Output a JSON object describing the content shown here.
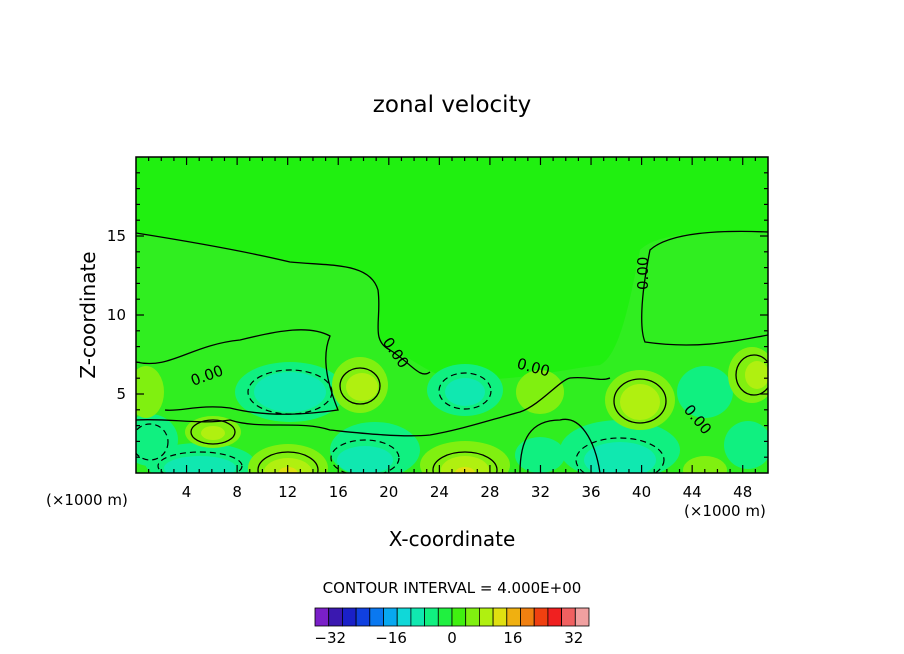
{
  "chart_data": {
    "type": "contour",
    "title": "zonal velocity",
    "xlabel": "X-coordinate",
    "ylabel": "Z-coordinate",
    "x_unit_left": "(×1000 m)",
    "x_unit_right": "(×1000 m)",
    "xlim": [
      0,
      50
    ],
    "ylim": [
      0,
      20
    ],
    "x_ticks": [
      4,
      8,
      12,
      16,
      20,
      24,
      28,
      32,
      36,
      40,
      44,
      48
    ],
    "y_ticks": [
      5,
      10,
      15
    ],
    "contour_interval_label": "CONTOUR INTERVAL = 4.000E+00",
    "contour_labels": [
      "0.00",
      "0.00",
      "0.00",
      "0.00",
      "0.00",
      "0.00"
    ],
    "colorbar": {
      "levels": [
        -36,
        -32,
        -28,
        -24,
        -20,
        -16,
        -12,
        -8,
        -4,
        0,
        4,
        8,
        12,
        16,
        20,
        24,
        28,
        32,
        36
      ],
      "tick_labels": [
        "-32",
        "-16",
        "0",
        "16",
        "32"
      ],
      "tick_values": [
        -32,
        -16,
        0,
        16,
        32
      ],
      "colors": [
        "#7a1fc8",
        "#3a18b0",
        "#1a20c8",
        "#1040e0",
        "#0a78f0",
        "#08a8f0",
        "#10d8d8",
        "#10e8b0",
        "#10f080",
        "#20f040",
        "#40f010",
        "#80f010",
        "#b0f010",
        "#e0e010",
        "#f0b010",
        "#f08010",
        "#f04010",
        "#f02020",
        "#f06060",
        "#f0a0a0"
      ]
    },
    "features": [
      {
        "x": 6,
        "y": 2.5,
        "value": 8
      },
      {
        "x": 12,
        "y": 0.5,
        "value": 16
      },
      {
        "x": 18.5,
        "y": 5.5,
        "value": 8
      },
      {
        "x": 26,
        "y": 0.5,
        "value": 16
      },
      {
        "x": 31,
        "y": 5,
        "value": 4
      },
      {
        "x": 40,
        "y": 4.5,
        "value": 8
      },
      {
        "x": 48.5,
        "y": 6,
        "value": 8
      },
      {
        "x": 9.5,
        "y": 5,
        "value": -8
      },
      {
        "x": 25,
        "y": 5,
        "value": -4
      },
      {
        "x": 39,
        "y": 0.5,
        "value": -8
      },
      {
        "x": 4,
        "y": 0.5,
        "value": -8
      },
      {
        "x": 1,
        "y": 2,
        "value": -4
      },
      {
        "x": 19,
        "y": 1,
        "value": -4
      },
      {
        "x": 45,
        "y": 5,
        "value": -4
      },
      {
        "x": 49,
        "y": 2,
        "value": -4
      }
    ]
  }
}
